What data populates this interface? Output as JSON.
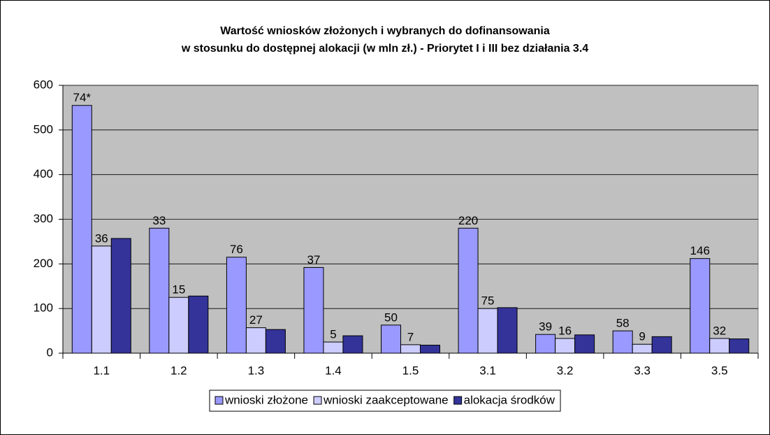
{
  "chart_data": {
    "type": "bar",
    "title": [
      "Wartość wniosków złożonych i wybranych do dofinansowania",
      "w stosunku do dostępnej alokacji (w mln zł.) - Priorytet I i III bez działania 3.4"
    ],
    "categories": [
      "1.1",
      "1.2",
      "1.3",
      "1.4",
      "1.5",
      "3.1",
      "3.2",
      "3.3",
      "3.5"
    ],
    "series": [
      {
        "name": "wnioski złożone",
        "color": "#9999ff",
        "values": [
          555,
          280,
          215,
          192,
          63,
          280,
          42,
          50,
          212
        ],
        "counts": [
          "74*",
          "33",
          "76",
          "37",
          "50",
          "220",
          "39",
          "58",
          "146"
        ]
      },
      {
        "name": "wnioski zaakceptowane",
        "color": "#ccccff",
        "values": [
          240,
          125,
          57,
          25,
          19,
          100,
          33,
          20,
          33
        ],
        "counts": [
          "36",
          "15",
          "27",
          "5",
          "7",
          "75",
          "16",
          "9",
          "32"
        ]
      },
      {
        "name": "alokacja środków",
        "color": "#333399",
        "values": [
          257,
          128,
          53,
          39,
          18,
          102,
          41,
          37,
          32
        ]
      }
    ],
    "ylim": [
      0,
      600
    ],
    "yticks": [
      0,
      100,
      200,
      300,
      400,
      500,
      600
    ],
    "grid": true,
    "legend": "bottom",
    "plot_background": "#c0c0c0"
  }
}
